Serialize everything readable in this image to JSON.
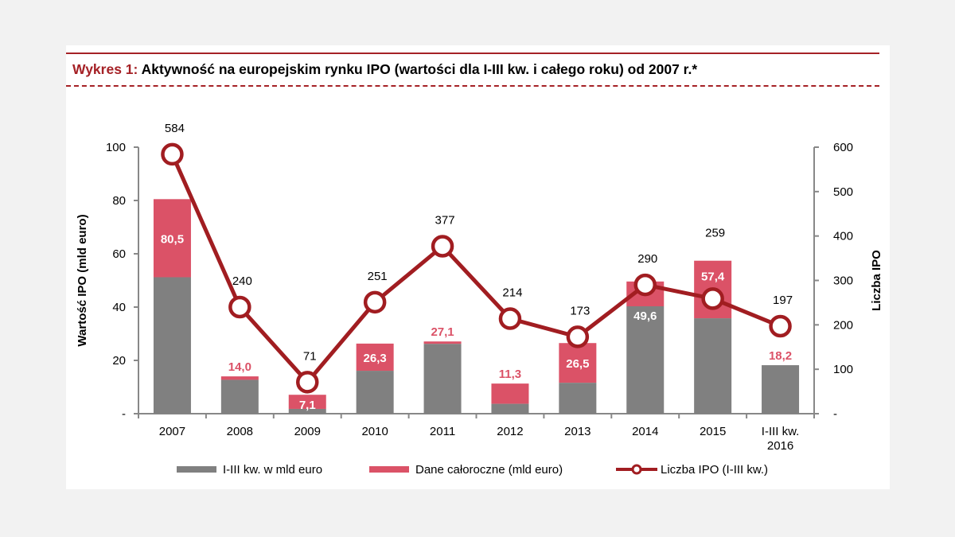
{
  "title": {
    "prefix": "Wykres 1:",
    "text": "Aktywność na europejskim rynku IPO (wartości dla I-III kw. i całego roku) od 2007 r.*"
  },
  "colors": {
    "gray": "#808080",
    "pink": "#db5267",
    "line": "#a11d21",
    "title_red": "#a52126"
  },
  "chart_data": {
    "type": "bar+line",
    "categories": [
      "2007",
      "2008",
      "2009",
      "2010",
      "2011",
      "2012",
      "2013",
      "2014",
      "2015",
      "I-III kw. 2016"
    ],
    "series": [
      {
        "name": "I-III kw. w mld euro",
        "type": "bar",
        "axis": "left",
        "values": [
          51.2,
          12.7,
          1.8,
          16.1,
          26.2,
          3.7,
          11.6,
          40.3,
          35.8,
          18.2
        ]
      },
      {
        "name": "Dane całoroczne (mld euro)",
        "type": "bar-total",
        "axis": "left",
        "values": [
          80.5,
          14.0,
          7.1,
          26.3,
          27.1,
          11.3,
          26.5,
          49.6,
          57.4,
          18.2
        ],
        "labels": [
          "80,5",
          "14,0",
          "7,1",
          "26,3",
          "27,1",
          "11,3",
          "26,5",
          "49,6",
          "57,4",
          "18,2"
        ],
        "label_style": [
          "inside",
          "above",
          "inside",
          "inside",
          "above",
          "above",
          "inside",
          "below",
          "inside",
          "above"
        ]
      },
      {
        "name": "Liczba IPO (I-III kw.)",
        "type": "line",
        "axis": "right",
        "values": [
          584,
          240,
          71,
          251,
          377,
          214,
          173,
          290,
          259,
          197
        ]
      }
    ],
    "ylabel": "Wartość  IPO (mld euro)",
    "y2label": "Liczba IPO",
    "ylim": [
      0,
      100
    ],
    "yticks": [
      "-",
      "20",
      "40",
      "60",
      "80",
      "100"
    ],
    "y2lim": [
      0,
      600
    ],
    "y2ticks": [
      "-",
      "100",
      "200",
      "300",
      "400",
      "500",
      "600"
    ],
    "grid": false,
    "legend": "bottom"
  }
}
